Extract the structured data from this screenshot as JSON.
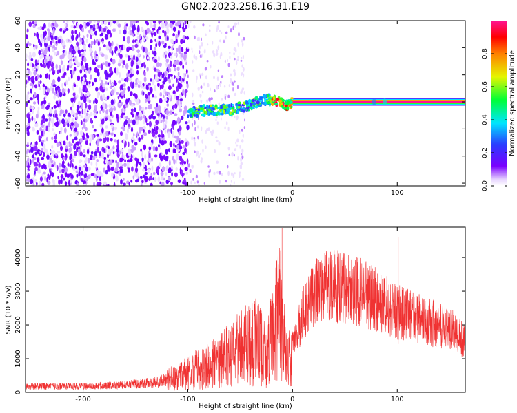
{
  "title": "GN02.2023.258.16.31.E19",
  "chart_data": [
    {
      "type": "heatmap",
      "xlabel": "Height of straight line (km)",
      "ylabel": "Frequency (Hz)",
      "xlim": [
        -255,
        165
      ],
      "ylim": [
        -62,
        60
      ],
      "xticks": [
        -200,
        -100,
        0,
        100
      ],
      "yticks": [
        -60,
        -40,
        -20,
        0,
        20,
        40,
        60
      ],
      "grid": false,
      "colorbar": {
        "label": "Normalized spectral amplitude",
        "range": [
          0,
          1
        ],
        "ticks": [
          0.0,
          0.2,
          0.4,
          0.6,
          0.8
        ],
        "colormap": [
          "#ffffff",
          "#e6d3ff",
          "#7a00ff",
          "#2a3dff",
          "#00e5ff",
          "#00ff36",
          "#e5f500",
          "#ff8000",
          "#ff0000",
          "#ff1493"
        ]
      },
      "features": {
        "noise_region_x": [
          -255,
          -100
        ],
        "sparse_noise_region_x": [
          -100,
          -45
        ],
        "signal_track": [
          {
            "x": -100,
            "y": -8
          },
          {
            "x": -80,
            "y": -6
          },
          {
            "x": -60,
            "y": -6
          },
          {
            "x": -40,
            "y": -2
          },
          {
            "x": -25,
            "y": 2
          },
          {
            "x": -15,
            "y": 0
          },
          {
            "x": -5,
            "y": -2
          },
          {
            "x": 0,
            "y": 0
          },
          {
            "x": 165,
            "y": 0
          }
        ],
        "carrier_frequency": 0,
        "carrier_peak_amplitude": 1.0
      }
    },
    {
      "type": "line",
      "xlabel": "Height of straight line (km)",
      "ylabel": "SNR (10 * v/v)",
      "xlim": [
        -255,
        165
      ],
      "ylim": [
        0,
        4900
      ],
      "xticks": [
        -200,
        -100,
        0,
        100
      ],
      "yticks": [
        0,
        1000,
        2000,
        3000,
        4000
      ],
      "grid": false,
      "series": [
        {
          "color": "#f03232",
          "envelope": [
            {
              "x": -255,
              "y": 180
            },
            {
              "x": -200,
              "y": 180
            },
            {
              "x": -160,
              "y": 220
            },
            {
              "x": -130,
              "y": 300
            },
            {
              "x": -110,
              "y": 450
            },
            {
              "x": -90,
              "y": 700
            },
            {
              "x": -70,
              "y": 900
            },
            {
              "x": -50,
              "y": 1300
            },
            {
              "x": -35,
              "y": 1500
            },
            {
              "x": -25,
              "y": 1100
            },
            {
              "x": -18,
              "y": 1900
            },
            {
              "x": -12,
              "y": 2400
            },
            {
              "x": -8,
              "y": 1600
            },
            {
              "x": -4,
              "y": 900
            },
            {
              "x": 0,
              "y": 1500
            },
            {
              "x": 10,
              "y": 2300
            },
            {
              "x": 20,
              "y": 2900
            },
            {
              "x": 35,
              "y": 3200
            },
            {
              "x": 50,
              "y": 3100
            },
            {
              "x": 70,
              "y": 2900
            },
            {
              "x": 100,
              "y": 2400
            },
            {
              "x": 130,
              "y": 2100
            },
            {
              "x": 150,
              "y": 1900
            },
            {
              "x": 165,
              "y": 1500
            }
          ],
          "spikes": [
            {
              "x": -10,
              "y": 4880
            },
            {
              "x": 101,
              "y": 4600
            },
            {
              "x": -16,
              "y": 3700
            }
          ]
        }
      ]
    }
  ]
}
